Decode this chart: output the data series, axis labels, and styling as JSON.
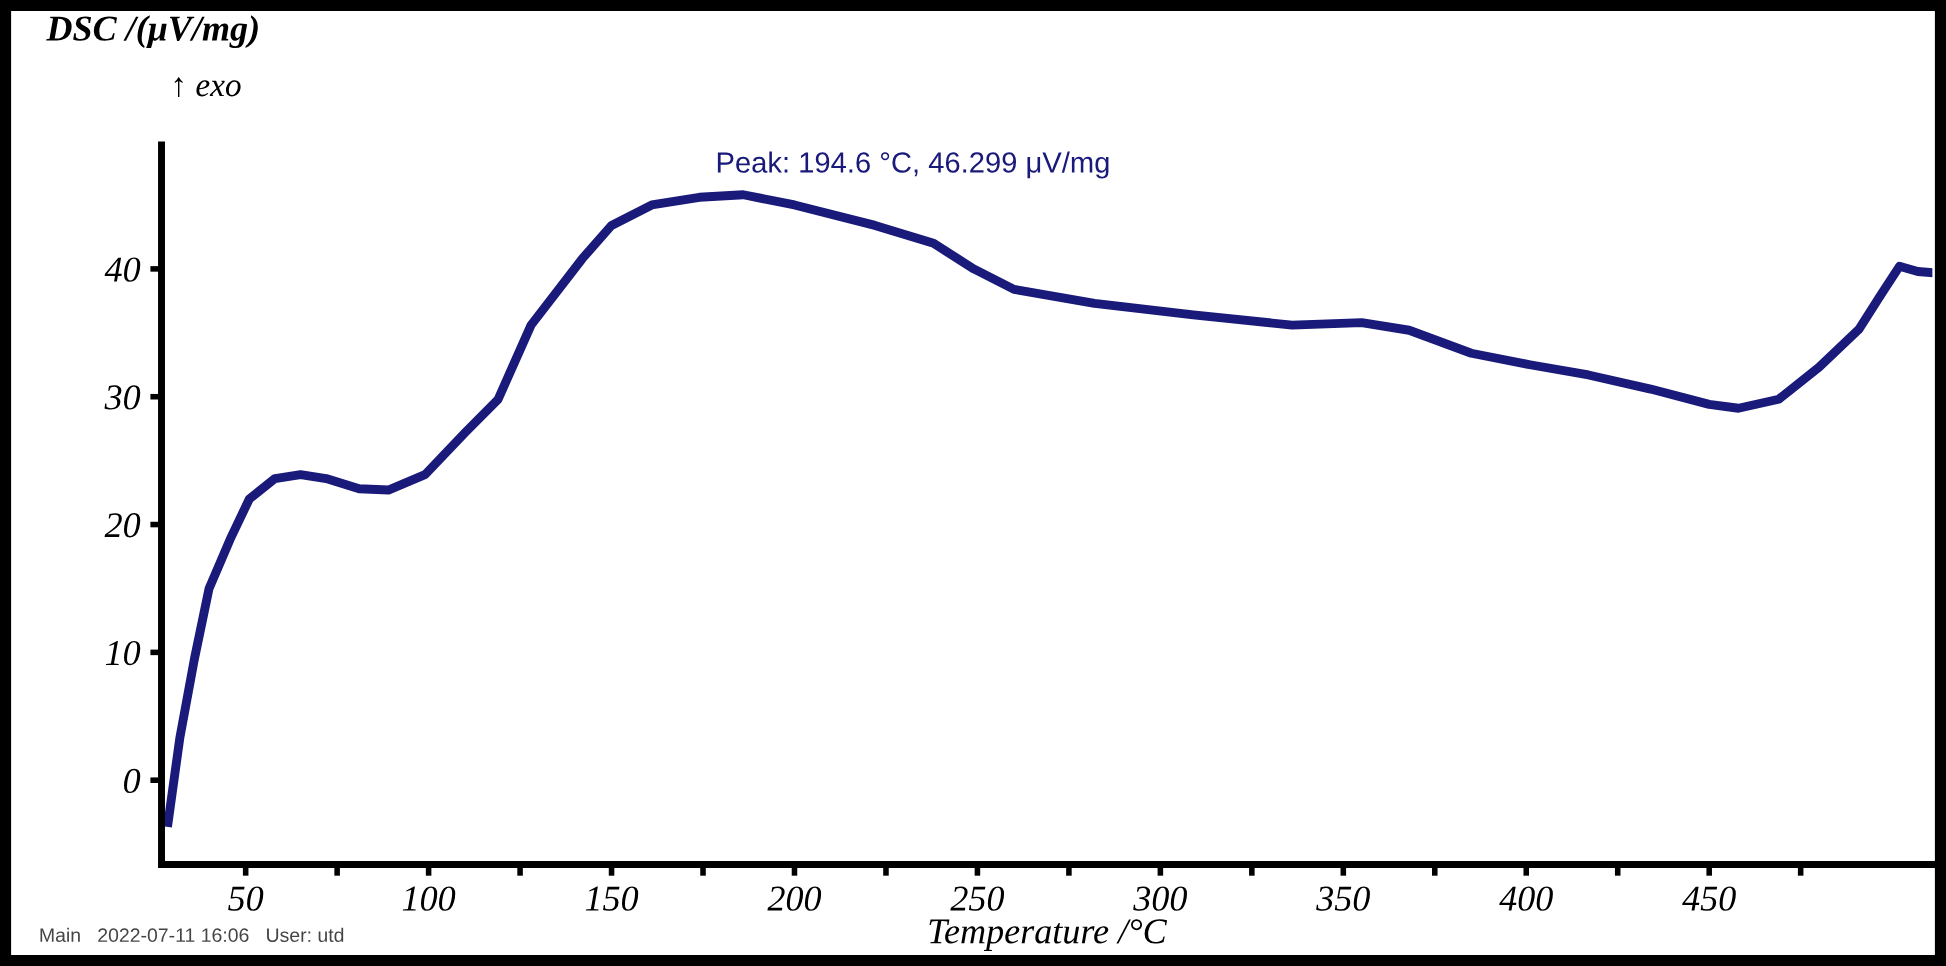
{
  "chart_data": {
    "type": "line",
    "xlabel": "Temperature /°C",
    "ylabel": "DSC /(μV/mg)",
    "annotations": [
      "↑ exo",
      {
        "text": "Peak: 194.6 °C, 46.299 μV/mg",
        "x": 186,
        "y": 45.8
      },
      "Main   2022-07-11 16:06   User: utd"
    ],
    "xlim": [
      27,
      511
    ],
    "ylim": [
      -6.6,
      49.7
    ],
    "xticks": [
      50,
      {
        "value": 75,
        "label": null
      },
      100,
      {
        "value": 125,
        "label": null
      },
      150,
      {
        "value": 175,
        "label": null
      },
      200,
      {
        "value": 225,
        "label": null
      },
      250,
      {
        "value": 275,
        "label": null
      },
      300,
      {
        "value": 325,
        "label": null
      },
      350,
      {
        "value": 375,
        "label": null
      },
      400,
      {
        "value": 425,
        "label": null
      },
      450,
      {
        "value": 475,
        "label": null
      }
    ],
    "yticks": [
      0,
      10,
      20,
      30,
      40
    ],
    "grid": false,
    "legend": false,
    "marker": "none",
    "line_style": "solid",
    "series": [
      {
        "color": "#1a1a7a",
        "x": [
          28.8,
          32,
          36,
          40,
          46,
          51,
          58,
          65,
          72,
          81,
          89,
          99,
          110,
          119,
          128,
          142,
          150,
          161,
          174,
          186,
          200,
          222,
          238,
          249,
          260,
          282,
          309,
          336,
          355,
          368,
          385,
          401,
          417,
          434,
          450,
          458,
          469,
          480,
          491,
          497,
          502,
          507,
          511
        ],
        "values": [
          -3.3,
          3.3,
          9.5,
          15,
          19,
          22,
          23.6,
          23.9,
          23.6,
          22.8,
          22.7,
          23.9,
          27.2,
          29.8,
          35.6,
          40.8,
          43.4,
          45,
          45.6,
          45.8,
          45,
          43.4,
          42,
          40,
          38.4,
          37.3,
          36.4,
          35.6,
          35.8,
          35.2,
          33.4,
          32.5,
          31.7,
          30.6,
          29.4,
          29.1,
          29.8,
          32.3,
          35.3,
          38,
          40.2,
          39.8,
          39.7
        ]
      }
    ]
  }
}
